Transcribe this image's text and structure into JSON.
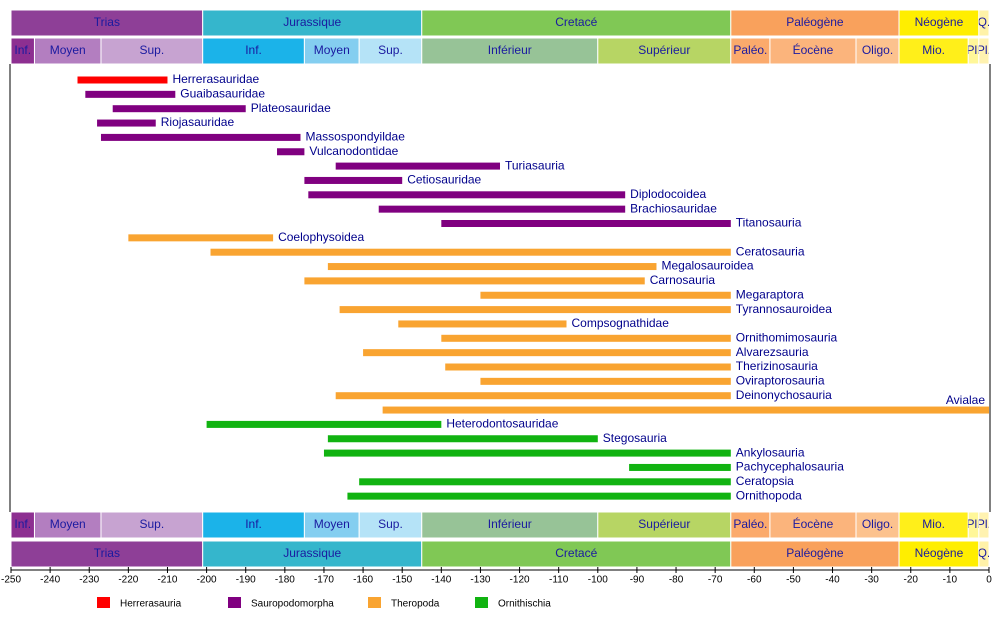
{
  "chart_data": {
    "type": "timeline",
    "xlim": [
      -250,
      0
    ],
    "xticks": [
      -250,
      -240,
      -230,
      -220,
      -210,
      -200,
      -190,
      -180,
      -170,
      -160,
      -150,
      -140,
      -130,
      -120,
      -110,
      -100,
      -90,
      -80,
      -70,
      -60,
      -50,
      -40,
      -30,
      -20,
      -10,
      0
    ],
    "periods": [
      {
        "name": "Trias",
        "color": "#8e3f97",
        "values": [
          -250,
          -201
        ]
      },
      {
        "name": "Jurassique",
        "color": "#35b6cc",
        "values": [
          -201,
          -145
        ]
      },
      {
        "name": "Cretacé",
        "color": "#80c855",
        "values": [
          -145,
          -66
        ]
      },
      {
        "name": "Paléogène",
        "color": "#f9a15c",
        "values": [
          -66,
          -23
        ]
      },
      {
        "name": "Néogène",
        "color": "#ffee00",
        "values": [
          -23,
          -2.6
        ]
      },
      {
        "name": "Q.",
        "color": "#fff2a8",
        "values": [
          -2.6,
          0
        ]
      }
    ],
    "epochs": [
      {
        "name": "Inf.",
        "color": "#8d2f91",
        "values": [
          -250,
          -244
        ]
      },
      {
        "name": "Moyen",
        "color": "#b37ec0",
        "values": [
          -244,
          -227
        ]
      },
      {
        "name": "Sup.",
        "color": "#c7a3d1",
        "values": [
          -227,
          -201
        ]
      },
      {
        "name": "Inf.",
        "color": "#1bb3e9",
        "values": [
          -201,
          -175
        ]
      },
      {
        "name": "Moyen",
        "color": "#84cef0",
        "values": [
          -175,
          -161
        ]
      },
      {
        "name": "Sup.",
        "color": "#b5e3f7",
        "values": [
          -161,
          -145
        ]
      },
      {
        "name": "Inférieur",
        "color": "#97c397",
        "values": [
          -145,
          -100
        ]
      },
      {
        "name": "Supérieur",
        "color": "#b7d564",
        "values": [
          -100,
          -66
        ]
      },
      {
        "name": "Paléo.",
        "color": "#fbaa6c",
        "values": [
          -66,
          -56
        ]
      },
      {
        "name": "Éocène",
        "color": "#fbb47c",
        "values": [
          -56,
          -34
        ]
      },
      {
        "name": "Oligo.",
        "color": "#fcc28e",
        "values": [
          -34,
          -23
        ]
      },
      {
        "name": "Mio.",
        "color": "#ffef1a",
        "values": [
          -23,
          -5.3
        ]
      },
      {
        "name": "Pl.",
        "color": "#fff799",
        "values": [
          -5.3,
          -2.6
        ]
      },
      {
        "name": "Pl.",
        "color": "#fff2b0",
        "values": [
          -2.6,
          0
        ]
      }
    ],
    "series": [
      {
        "name": "Herrerasauria",
        "color": "#ff0000",
        "clades": [
          "Herrerasauridae"
        ],
        "values": [
          [
            -233,
            -210
          ]
        ]
      },
      {
        "name": "Sauropodomorpha",
        "color": "#800080",
        "clades": [
          "Guaibasauridae",
          "Plateosauridae",
          "Riojasauridae",
          "Massospondyildae",
          "Vulcanodontidae",
          "Turiasauria",
          "Cetiosauridae",
          "Diplodocoidea",
          "Brachiosauridae",
          "Titanosauria"
        ],
        "values": [
          [
            -231,
            -208
          ],
          [
            -224,
            -190
          ],
          [
            -228,
            -213
          ],
          [
            -227,
            -176
          ],
          [
            -182,
            -175
          ],
          [
            -167,
            -125
          ],
          [
            -175,
            -150
          ],
          [
            -174,
            -93
          ],
          [
            -156,
            -93
          ],
          [
            -140,
            -66
          ]
        ]
      },
      {
        "name": "Theropoda",
        "color": "#f9a431",
        "clades": [
          "Coelophysoidea",
          "Ceratosauria",
          "Megalosauroidea",
          "Carnosauria",
          "Megaraptora",
          "Tyrannosauroidea",
          "Compsognathidae",
          "Ornithomimosauria",
          "Alvarezsauria",
          "Therizinosauria",
          "Oviraptorosauria",
          "Deinonychosauria",
          "Avialae"
        ],
        "values": [
          [
            -220,
            -183
          ],
          [
            -199,
            -66
          ],
          [
            -169,
            -85
          ],
          [
            -175,
            -88
          ],
          [
            -130,
            -66
          ],
          [
            -166,
            -66
          ],
          [
            -151,
            -108
          ],
          [
            -140,
            -66
          ],
          [
            -160,
            -66
          ],
          [
            -139,
            -66
          ],
          [
            -130,
            -66
          ],
          [
            -167,
            -66
          ],
          [
            -155,
            0
          ]
        ]
      },
      {
        "name": "Ornithischia",
        "color": "#11b311",
        "clades": [
          "Heterodontosauridae",
          "Stegosauria",
          "Ankylosauria",
          "Pachycephalosauria",
          "Ceratopsia",
          "Ornithopoda"
        ],
        "values": [
          [
            -200,
            -140
          ],
          [
            -169,
            -100
          ],
          [
            -170,
            -66
          ],
          [
            -92,
            -66
          ],
          [
            -161,
            -66
          ],
          [
            -164,
            -66
          ]
        ]
      }
    ]
  }
}
